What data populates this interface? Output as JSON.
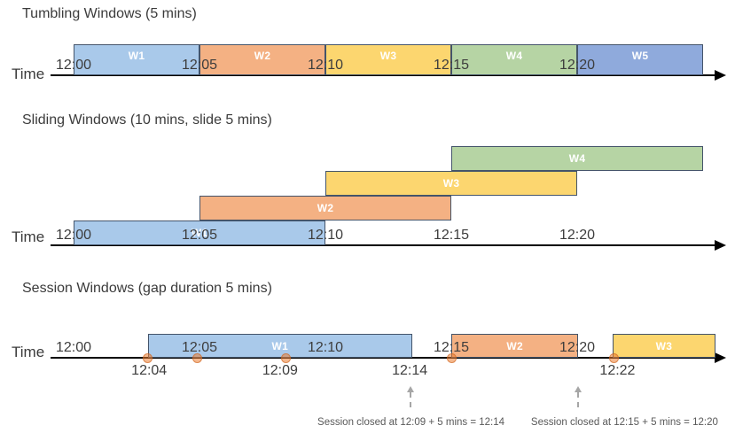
{
  "colors": {
    "window_fills": {
      "blue": "#A9C9EA",
      "orange": "#F4B183",
      "yellow": "#FCD66F",
      "green": "#B6D4A4",
      "periwinkle": "#8FAADC"
    },
    "window_border": "#44546A",
    "window_label_text": "#FFFFFF",
    "axis_line": "#000000",
    "tick_text": "#3D3D3D",
    "event_dot_fill": "rgba(237,125,49,0.55)",
    "event_dot_border": "rgba(197,90,17,0.5)",
    "annotation_text": "#595959",
    "arrow_gray": "#A6A6A6"
  },
  "sections": [
    {
      "id": "tumbling",
      "title": "Tumbling Windows (5 mins)",
      "axis_label": "Time",
      "windows": [
        {
          "label": "W1",
          "color": "blue",
          "start_min": 0,
          "end_min": 5,
          "row": 0
        },
        {
          "label": "W2",
          "color": "orange",
          "start_min": 5,
          "end_min": 10,
          "row": 0
        },
        {
          "label": "W3",
          "color": "yellow",
          "start_min": 10,
          "end_min": 15,
          "row": 0
        },
        {
          "label": "W4",
          "color": "green",
          "start_min": 15,
          "end_min": 20,
          "row": 0
        },
        {
          "label": "W5",
          "color": "periwinkle",
          "start_min": 20,
          "end_min": 25,
          "row": 0
        }
      ],
      "ticks": [
        {
          "label": "12:00",
          "min": 0
        },
        {
          "label": "12:05",
          "min": 5
        },
        {
          "label": "12:10",
          "min": 10
        },
        {
          "label": "12:15",
          "min": 15
        },
        {
          "label": "12:20",
          "min": 20
        }
      ],
      "events": [],
      "below_labels": [],
      "arrows": [],
      "annotations": []
    },
    {
      "id": "sliding",
      "title": "Sliding Windows (10 mins, slide 5 mins)",
      "axis_label": "Time",
      "windows": [
        {
          "label": "W1",
          "color": "blue",
          "start_min": 0,
          "end_min": 10,
          "row": 0
        },
        {
          "label": "W2",
          "color": "orange",
          "start_min": 5,
          "end_min": 15,
          "row": 1
        },
        {
          "label": "W3",
          "color": "yellow",
          "start_min": 10,
          "end_min": 20,
          "row": 2
        },
        {
          "label": "W4",
          "color": "green",
          "start_min": 15,
          "end_min": 25,
          "row": 3
        }
      ],
      "ticks": [
        {
          "label": "12:00",
          "min": 0
        },
        {
          "label": "12:05",
          "min": 5
        },
        {
          "label": "12:10",
          "min": 10
        },
        {
          "label": "12:15",
          "min": 15
        },
        {
          "label": "12:20",
          "min": 20
        }
      ],
      "events": [],
      "below_labels": [],
      "arrows": [],
      "annotations": []
    },
    {
      "id": "session",
      "title": "Session Windows (gap duration 5 mins)",
      "axis_label": "Time",
      "windows": [
        {
          "label": "W1",
          "color": "blue",
          "start_min": 2.95,
          "end_min": 13.45,
          "row": 0
        },
        {
          "label": "W2",
          "color": "orange",
          "start_min": 15.0,
          "end_min": 20.05,
          "row": 0
        },
        {
          "label": "W3",
          "color": "yellow",
          "start_min": 21.4,
          "end_min": 25.5,
          "row": 0
        }
      ],
      "ticks": [
        {
          "label": "12:00",
          "min": 0
        },
        {
          "label": "12:05",
          "min": 5
        },
        {
          "label": "12:10",
          "min": 10
        },
        {
          "label": "12:15",
          "min": 15
        },
        {
          "label": "12:20",
          "min": 20
        }
      ],
      "events": [
        {
          "min": 2.95
        },
        {
          "min": 4.9
        },
        {
          "min": 8.45
        },
        {
          "min": 15.0
        },
        {
          "min": 21.45
        }
      ],
      "below_labels": [
        {
          "label": "12:04",
          "min": 3.0
        },
        {
          "label": "12:09",
          "min": 8.2
        },
        {
          "label": "12:14",
          "min": 13.35
        },
        {
          "label": "12:22",
          "min": 21.6
        }
      ],
      "arrows": [
        {
          "min": 13.38
        },
        {
          "min": 20.05
        }
      ],
      "annotations": [
        {
          "text": "Session closed at 12:09 + 5 mins = 12:14",
          "center_min": 13.4
        },
        {
          "text": "Session closed at 12:15 + 5 mins = 12:20",
          "center_min": 21.88
        }
      ]
    }
  ]
}
